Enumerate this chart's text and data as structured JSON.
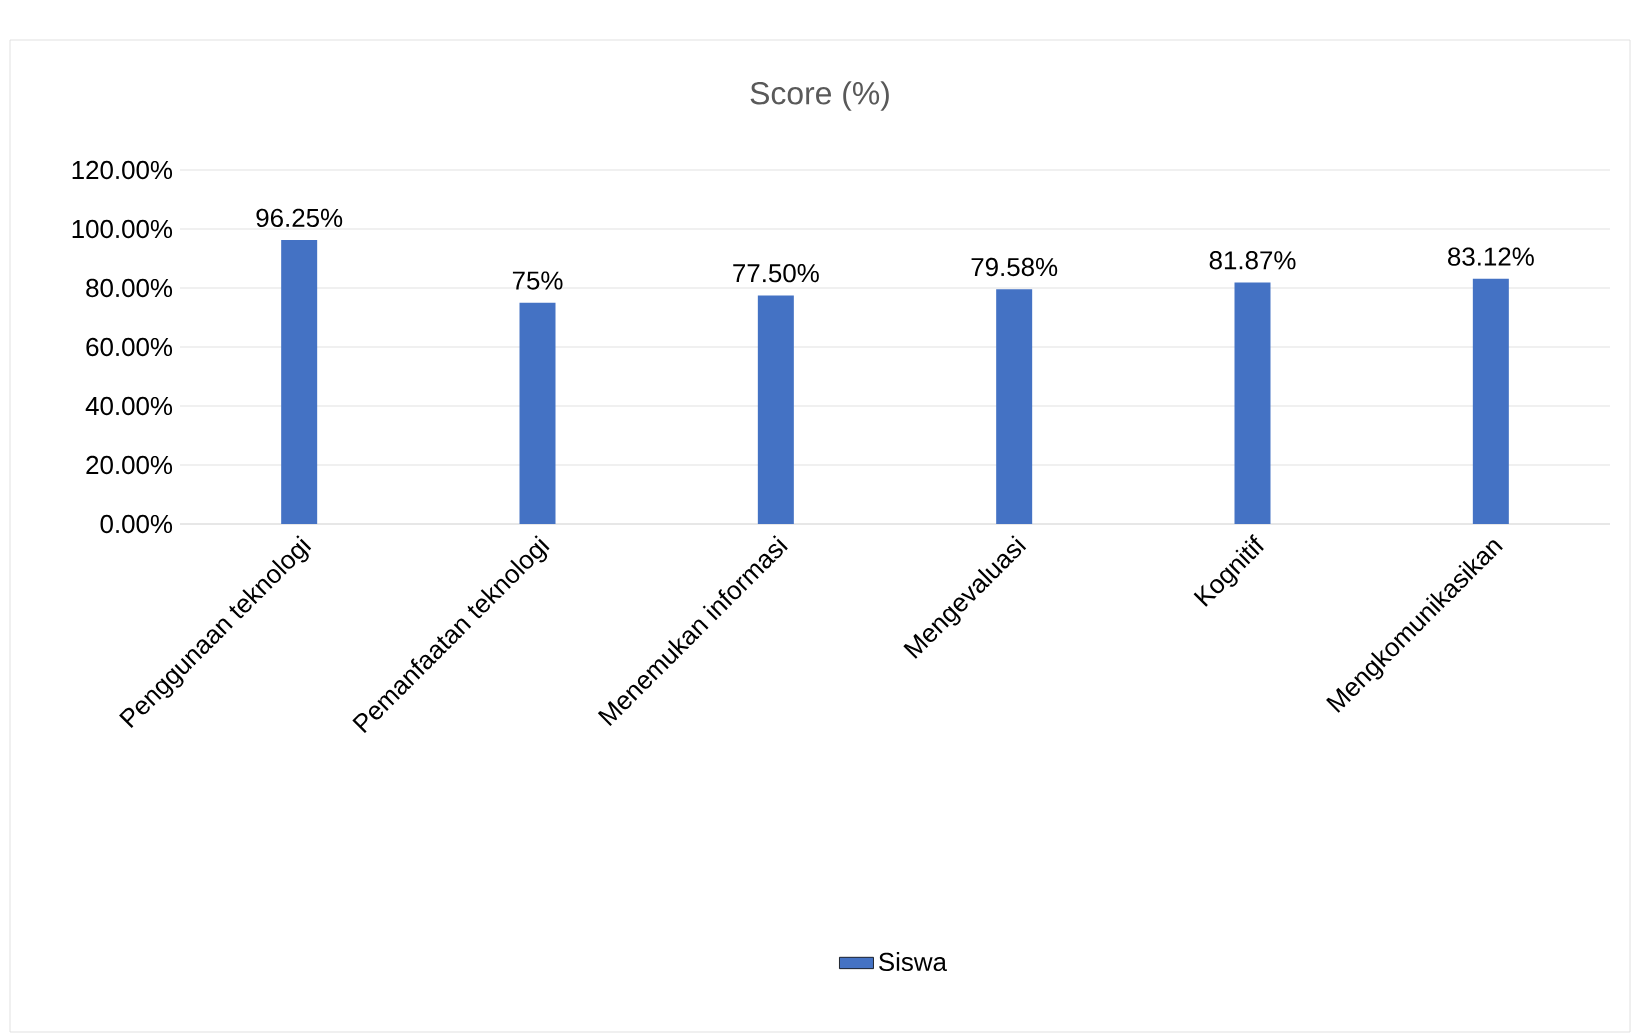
{
  "chart_data": {
    "type": "bar",
    "title": "Score (%)",
    "categories": [
      "Penggunaan teknologi",
      "Pemanfaatan teknologi",
      "Menemukan informasi",
      "Mengevaluasi",
      "Kognitif",
      "Mengkomunikasikan"
    ],
    "series": [
      {
        "name": "Siswa",
        "color": "#4472c4",
        "values": [
          96.25,
          75,
          77.5,
          79.58,
          81.87,
          83.12
        ],
        "value_labels": [
          "96.25%",
          "75%",
          "77.50%",
          "79.58%",
          "81.87%",
          "83.12%"
        ]
      }
    ],
    "ylim": [
      0,
      120
    ],
    "yticks": [
      {
        "value": 0,
        "label": "0.00%"
      },
      {
        "value": 20,
        "label": "20.00%"
      },
      {
        "value": 40,
        "label": "40.00%"
      },
      {
        "value": 60,
        "label": "60.00%"
      },
      {
        "value": 80,
        "label": "80.00%"
      },
      {
        "value": 100,
        "label": "100.00%"
      },
      {
        "value": 120,
        "label": "120.00%"
      }
    ],
    "grid": "y",
    "legend": "bottom"
  }
}
